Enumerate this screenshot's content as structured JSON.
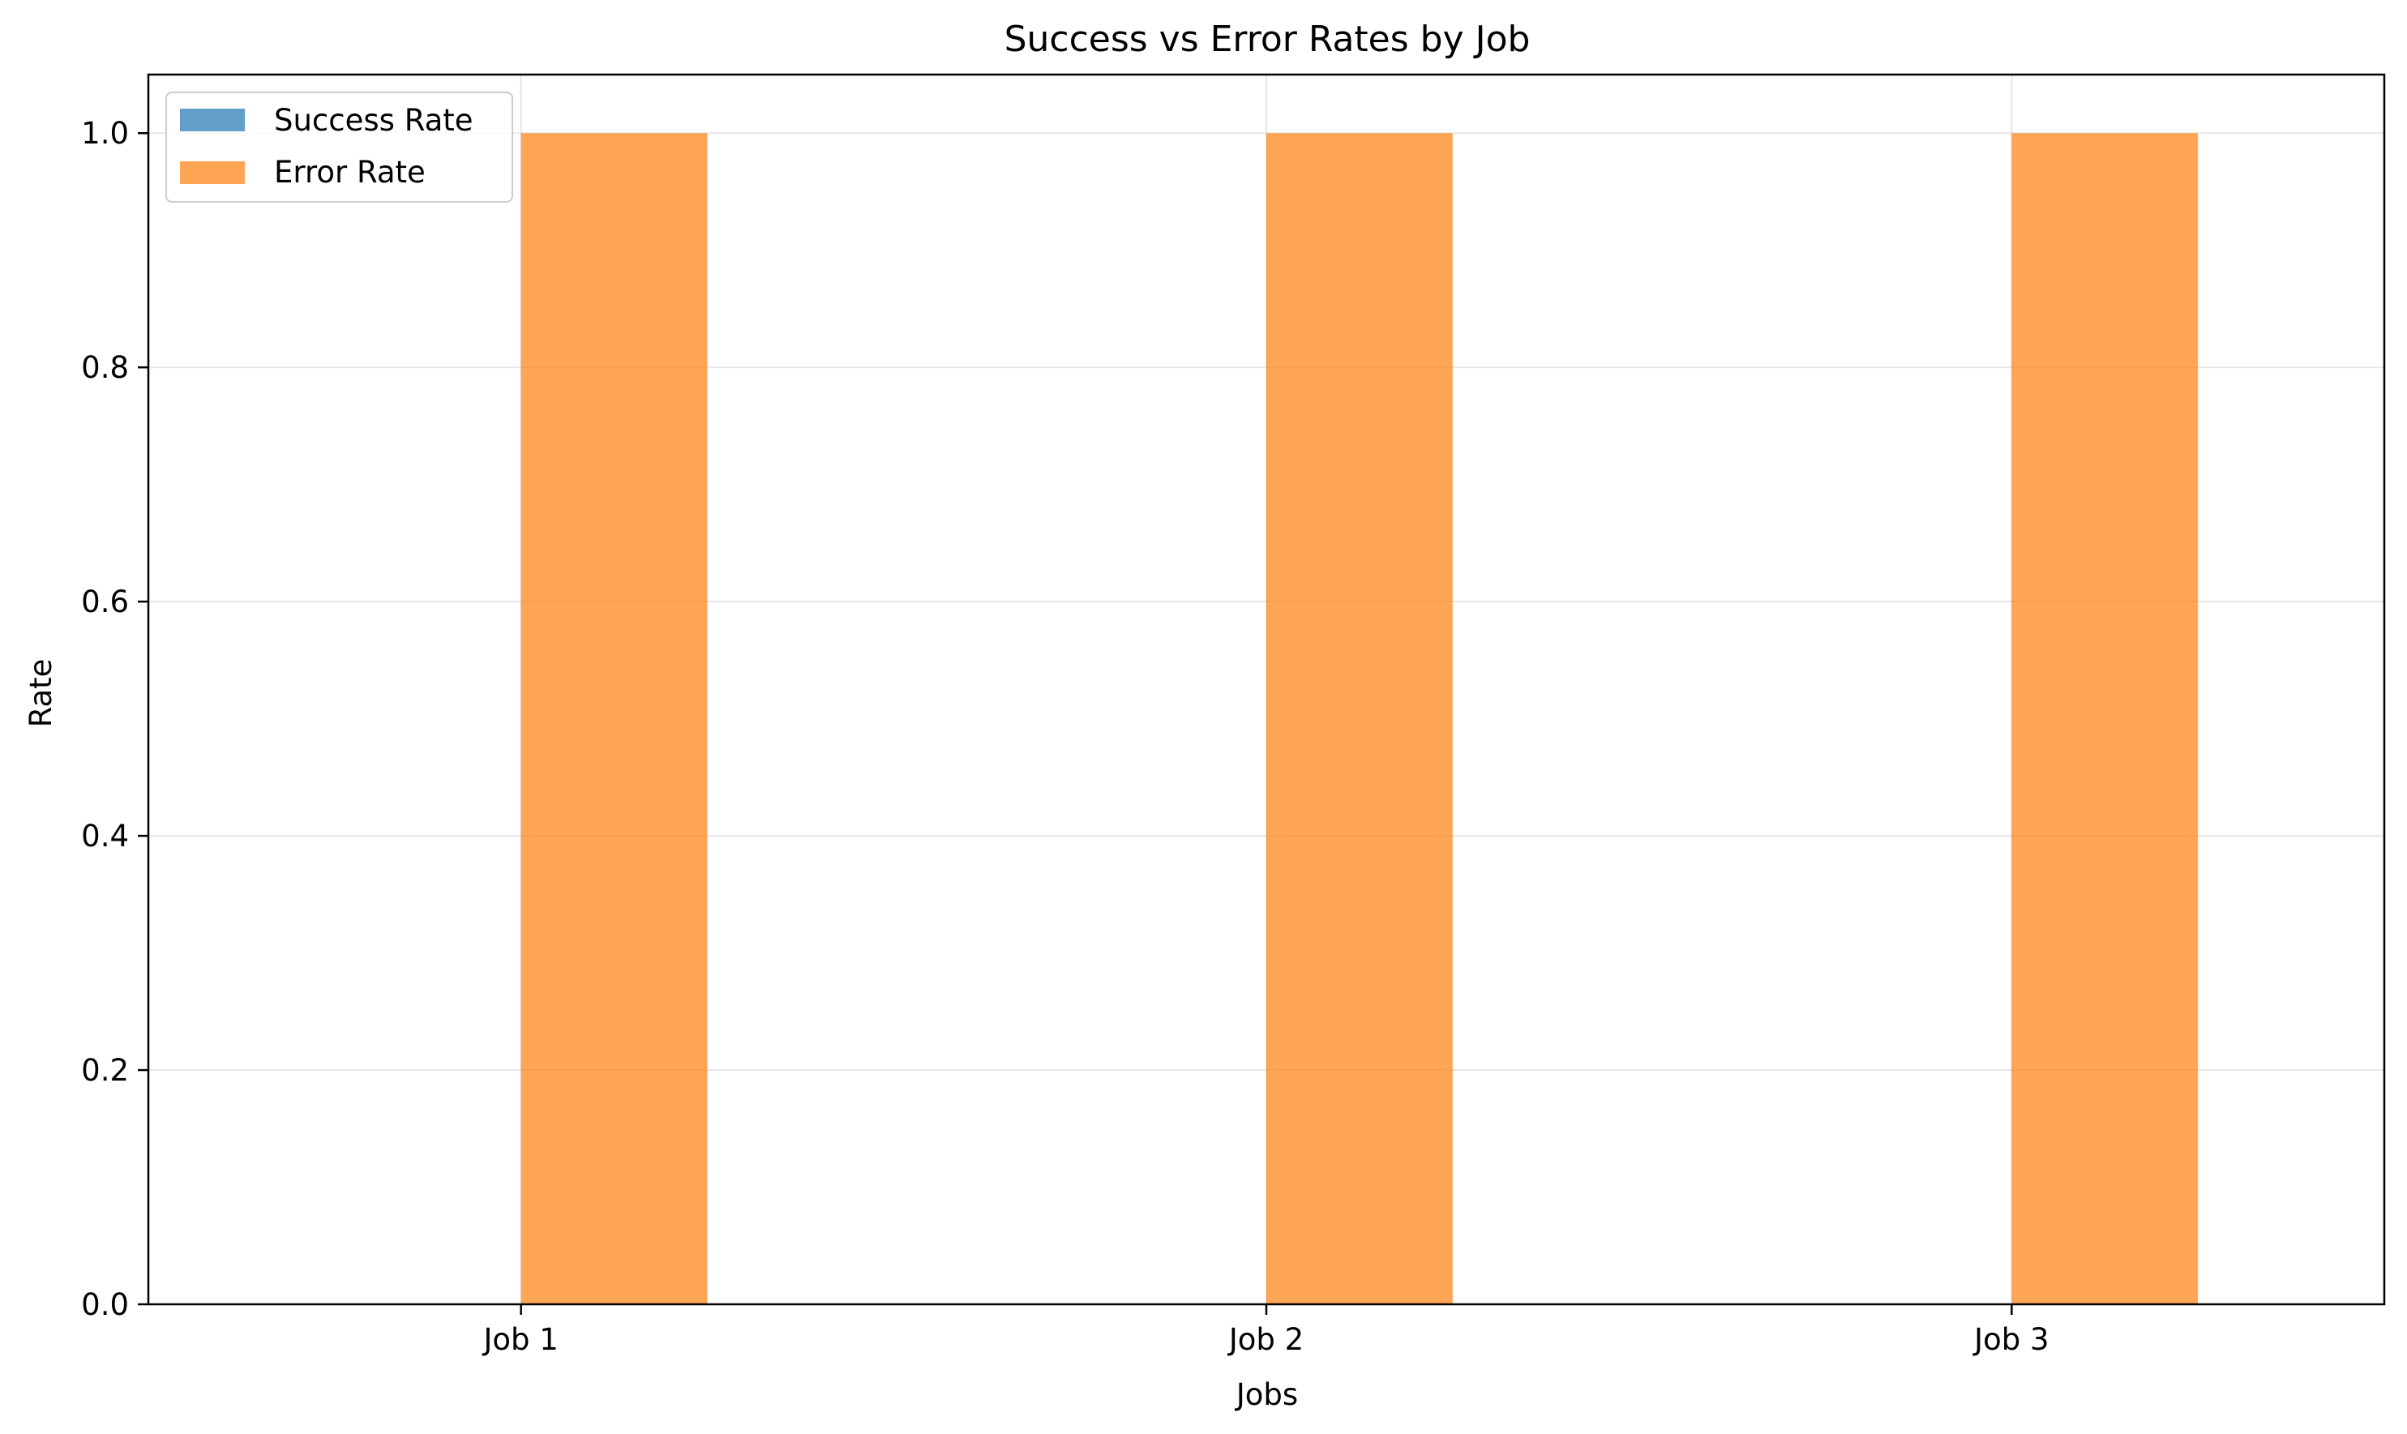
{
  "chart_data": {
    "type": "bar",
    "title": "Success vs Error Rates by Job",
    "xlabel": "Jobs",
    "ylabel": "Rate",
    "categories": [
      "Job 1",
      "Job 2",
      "Job 3"
    ],
    "series": [
      {
        "name": "Success Rate",
        "values": [
          0,
          0,
          0
        ],
        "color": "#1f77b4"
      },
      {
        "name": "Error Rate",
        "values": [
          1.0,
          1.0,
          1.0
        ],
        "color": "#ff7f0e"
      }
    ],
    "ylim": [
      0,
      1.05
    ],
    "yticks": [
      "0.0",
      "0.2",
      "0.4",
      "0.6",
      "0.8",
      "1.0"
    ],
    "grid": true,
    "legend_position": "top-left"
  }
}
